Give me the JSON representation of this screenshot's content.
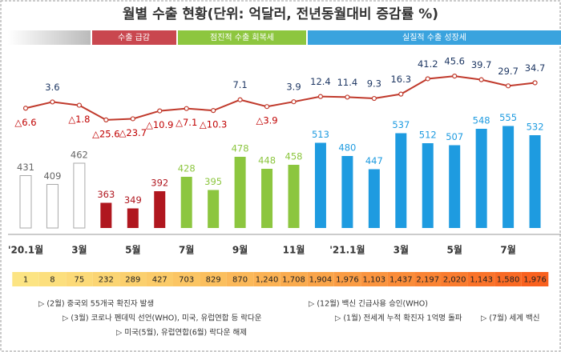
{
  "chart_data": {
    "type": "bar-line",
    "title": "월별 수출 현황(단위: 억달러, 전년동월대비 증감률 %)",
    "phases": [
      "수출 급감",
      "점진적 수출 회복세",
      "실질적 수출 성장세"
    ],
    "categories": [
      "'20.1월",
      null,
      "3월",
      null,
      "5월",
      null,
      "7월",
      null,
      "9월",
      null,
      "11월",
      null,
      "'21.1월",
      null,
      "3월",
      null,
      "5월",
      null,
      "7월",
      null
    ],
    "bars": {
      "values": [
        431,
        409,
        462,
        363,
        349,
        392,
        428,
        395,
        478,
        448,
        458,
        513,
        480,
        447,
        537,
        512,
        507,
        548,
        555,
        532
      ],
      "colors": [
        "#ffffff",
        "#ffffff",
        "#ffffff",
        "#b0171f",
        "#b0171f",
        "#b0171f",
        "#8cc63f",
        "#8cc63f",
        "#8cc63f",
        "#8cc63f",
        "#8cc63f",
        "#1e9be0",
        "#1e9be0",
        "#1e9be0",
        "#1e9be0",
        "#1e9be0",
        "#1e9be0",
        "#1e9be0",
        "#1e9be0",
        "#1e9be0"
      ]
    },
    "ylim": [
      300,
      570
    ],
    "line": {
      "axis": "y2",
      "color": "#c0392b",
      "values": [
        -6.6,
        3.6,
        -1.8,
        -25.6,
        -23.7,
        -10.9,
        -7.1,
        -10.3,
        7.1,
        -3.9,
        3.9,
        12.4,
        11.4,
        9.3,
        16.3,
        41.2,
        45.6,
        39.7,
        29.7,
        34.7
      ],
      "value_labels": [
        "△6.6",
        "3.6",
        "△1.8",
        "△25.6",
        "△23.7",
        "△10.9",
        "△7.1",
        "△10.3",
        "7.1",
        "△3.9",
        "3.9",
        "12.4",
        "11.4",
        "9.3",
        "16.3",
        "41.2",
        "45.6",
        "39.7",
        "29.7",
        "34.7"
      ]
    },
    "y2lim": [
      -30,
      60
    ],
    "bottom_row": [
      "1",
      "8",
      "75",
      "232",
      "289",
      "427",
      "703",
      "829",
      "870",
      "1,240",
      "1,708",
      "1,904",
      "1,976",
      "1,103",
      "1,437",
      "2,197",
      "2,020",
      "1,143",
      "1,580",
      "1,976"
    ],
    "notes": [
      "▷ (2월) 중국외 55개국 확진자 발생",
      "▷ (3월) 코로나 펜데믹 선언(WHO), 미국, 유럽연합 등 락다운",
      "▷ 미국(5월), 유럽연합(6월) 락다운 해제",
      "▷ (12월) 백신 긴급사용 승인(WHO)",
      "▷ (1월) 전세계 누적 확진자 1억명 돌파",
      "▷ (7월) 세계 백신"
    ]
  }
}
